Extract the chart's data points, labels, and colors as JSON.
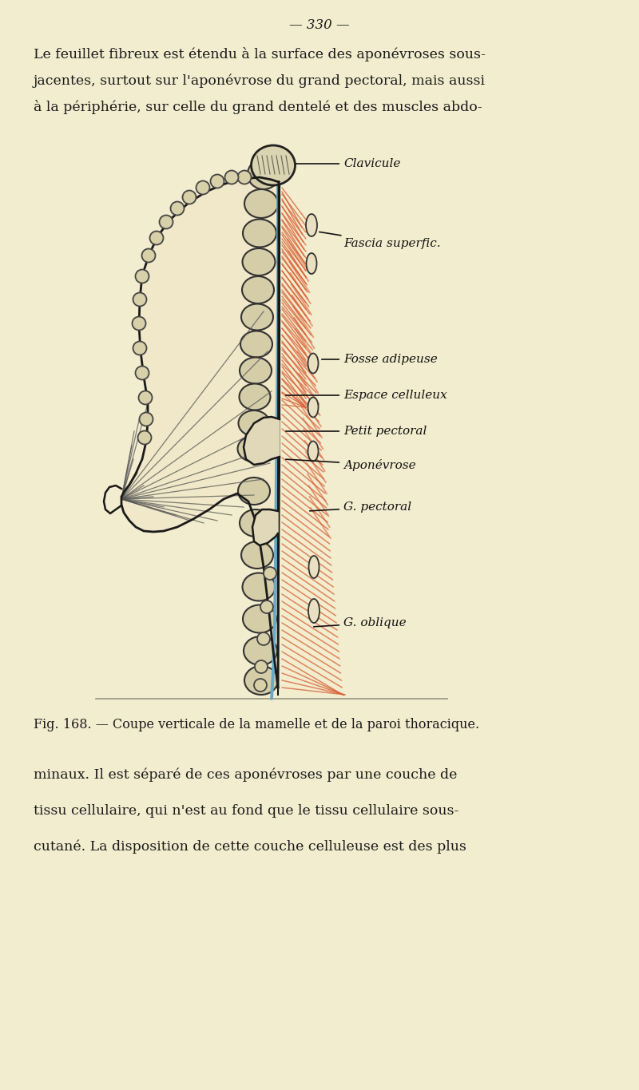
{
  "bg_color": "#f2edcf",
  "page_number": "— 330 —",
  "top_text_lines": [
    "Le feuillet fibreux est étendu à la surface des aponévroses sous-",
    "jacentes, surtout sur l'aponévrose du grand pectoral, mais aussi",
    "à la périphérie, sur celle du grand dentelé et des muscles abdo-"
  ],
  "caption": "Fig. 168. — Coupe verticale de la mamelle et de la paroi thoracique.",
  "bottom_text_lines": [
    "minaux. Il est séparé de ces aponévroses par une couche de",
    "tissu cellulaire, qui n'est au fond que le tissu cellulaire sous-",
    "cutané. La disposition de cette couche celluleuse est des plus"
  ],
  "red_color": "#d95f35",
  "blue_color": "#6aaac8",
  "line_color": "#1a1a1a",
  "text_color": "#1a1a1a",
  "rib_fill": "#d4cda8",
  "rib_edge": "#333333",
  "breast_fill": "#f0e8c8",
  "clav_fill": "#dbd4b0",
  "clav_hatch": "///",
  "fascia_oval_fill": "#e8e0c0"
}
